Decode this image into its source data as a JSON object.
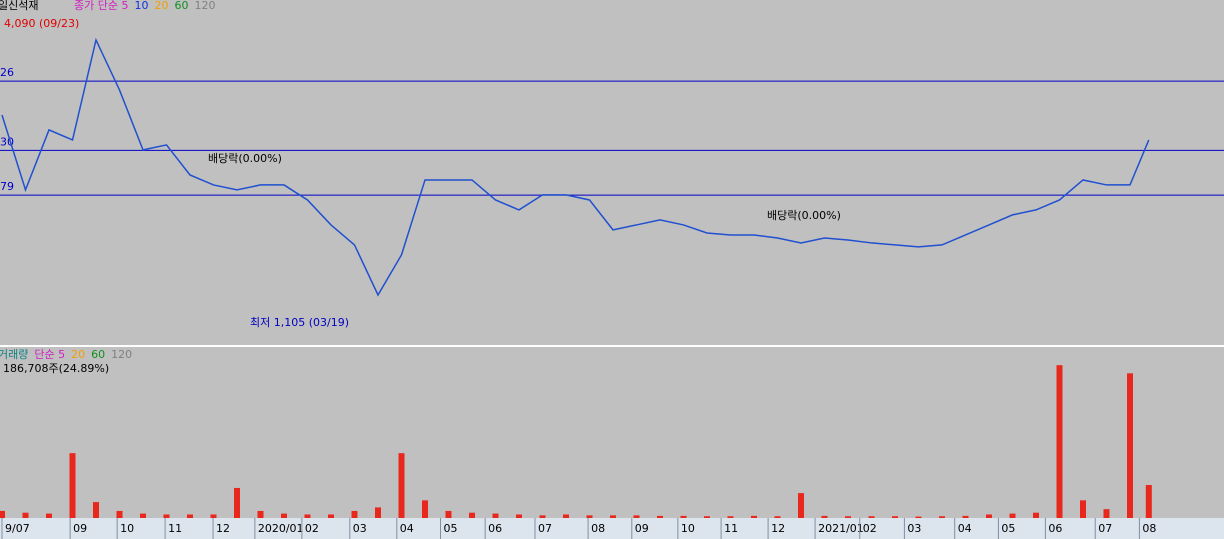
{
  "chart_data": [
    {
      "type": "line",
      "title": "일신석재",
      "legend": [
        {
          "name": "종가 단순 5",
          "color": "#d020c0"
        },
        {
          "name": "10",
          "color": "#1030e0"
        },
        {
          "name": "20",
          "color": "#f0a000"
        },
        {
          "name": "60",
          "color": "#109020"
        },
        {
          "name": "120",
          "color": "#808080"
        }
      ],
      "annotations": [
        "4,090 (09/23)",
        "최저 1,105 (03/19)",
        "배당락(0.00%)",
        "배당락(0.00%)"
      ],
      "x": [
        0,
        0.5,
        1,
        1.5,
        2,
        2.5,
        3,
        3.5,
        4,
        4.5,
        5,
        5.5,
        6,
        6.5,
        7,
        7.5,
        8,
        8.5,
        9,
        9.5,
        10,
        10.5,
        11,
        11.5,
        12,
        12.5,
        13,
        13.5,
        14,
        14.5,
        15,
        15.5,
        16,
        16.5,
        17,
        17.5,
        18,
        18.5,
        19,
        19.5,
        20,
        20.5,
        21,
        21.5,
        22,
        22.5,
        23,
        23.5,
        24,
        24.4
      ],
      "series": [
        {
          "name": "종가",
          "color": "#2050d0",
          "values": [
            3185,
            2432,
            3035,
            2934,
            3939,
            3437,
            2834,
            2884,
            2582,
            2482,
            2432,
            2482,
            2482,
            2331,
            2080,
            1879,
            1376,
            1779,
            2532,
            2532,
            2532,
            2331,
            2231,
            2382,
            2382,
            2331,
            2030,
            2080,
            2130,
            2080,
            1999,
            1979,
            1979,
            1949,
            1899,
            1949,
            1929,
            1899,
            1879,
            1859,
            1879,
            1979,
            2080,
            2181,
            2231,
            2331,
            2532,
            2482,
            2482,
            2934
          ]
        }
      ],
      "hlines": [
        {
          "value": 3526,
          "label": "26"
        },
        {
          "value": 2830,
          "label": "30"
        },
        {
          "value": 2379,
          "label": "79"
        }
      ],
      "xlim": [
        0,
        26
      ],
      "ylim": [
        873,
        4341
      ],
      "xticks": [
        {
          "value": 0,
          "label": "9/07"
        },
        {
          "value": 1.45,
          "label": "09"
        },
        {
          "value": 2.45,
          "label": "10"
        },
        {
          "value": 3.47,
          "label": "11"
        },
        {
          "value": 4.49,
          "label": "12"
        },
        {
          "value": 5.38,
          "label": "2020/01"
        },
        {
          "value": 6.38,
          "label": "02"
        },
        {
          "value": 7.4,
          "label": "03"
        },
        {
          "value": 8.4,
          "label": "04"
        },
        {
          "value": 9.33,
          "label": "05"
        },
        {
          "value": 10.28,
          "label": "06"
        },
        {
          "value": 11.34,
          "label": "07"
        },
        {
          "value": 12.47,
          "label": "08"
        },
        {
          "value": 13.4,
          "label": "09"
        },
        {
          "value": 14.38,
          "label": "10"
        },
        {
          "value": 15.3,
          "label": "11"
        },
        {
          "value": 16.3,
          "label": "12"
        },
        {
          "value": 17.3,
          "label": "2021/01"
        },
        {
          "value": 18.25,
          "label": "02"
        },
        {
          "value": 19.2,
          "label": "03"
        },
        {
          "value": 20.27,
          "label": "04"
        },
        {
          "value": 21.2,
          "label": "05"
        },
        {
          "value": 22.2,
          "label": "06"
        },
        {
          "value": 23.26,
          "label": "07"
        },
        {
          "value": 24.2,
          "label": "08"
        }
      ]
    },
    {
      "type": "bar",
      "title": "186,708주(24.89%)",
      "legend": [
        {
          "name": "거래량",
          "color": "#108080"
        },
        {
          "name": "단순 5",
          "color": "#d020c0"
        },
        {
          "name": "20",
          "color": "#f0a000"
        },
        {
          "name": "60",
          "color": "#109020"
        },
        {
          "name": "120",
          "color": "#808080"
        }
      ],
      "series": [
        {
          "name": "거래량",
          "color": "#e8271d",
          "values": [
            40000,
            30000,
            25000,
            367000,
            90000,
            40000,
            25000,
            20000,
            20000,
            20000,
            170000,
            40000,
            25000,
            20000,
            20000,
            40000,
            60000,
            367000,
            100000,
            40000,
            30000,
            25000,
            20000,
            15000,
            20000,
            15000,
            15000,
            15000,
            12000,
            12000,
            10000,
            10000,
            12000,
            10000,
            141000,
            12000,
            10000,
            10000,
            10000,
            8000,
            10000,
            12000,
            20000,
            25000,
            30000,
            865000,
            100000,
            50000,
            819000,
            186708
          ]
        }
      ],
      "ylim": [
        0,
        900000
      ]
    }
  ]
}
